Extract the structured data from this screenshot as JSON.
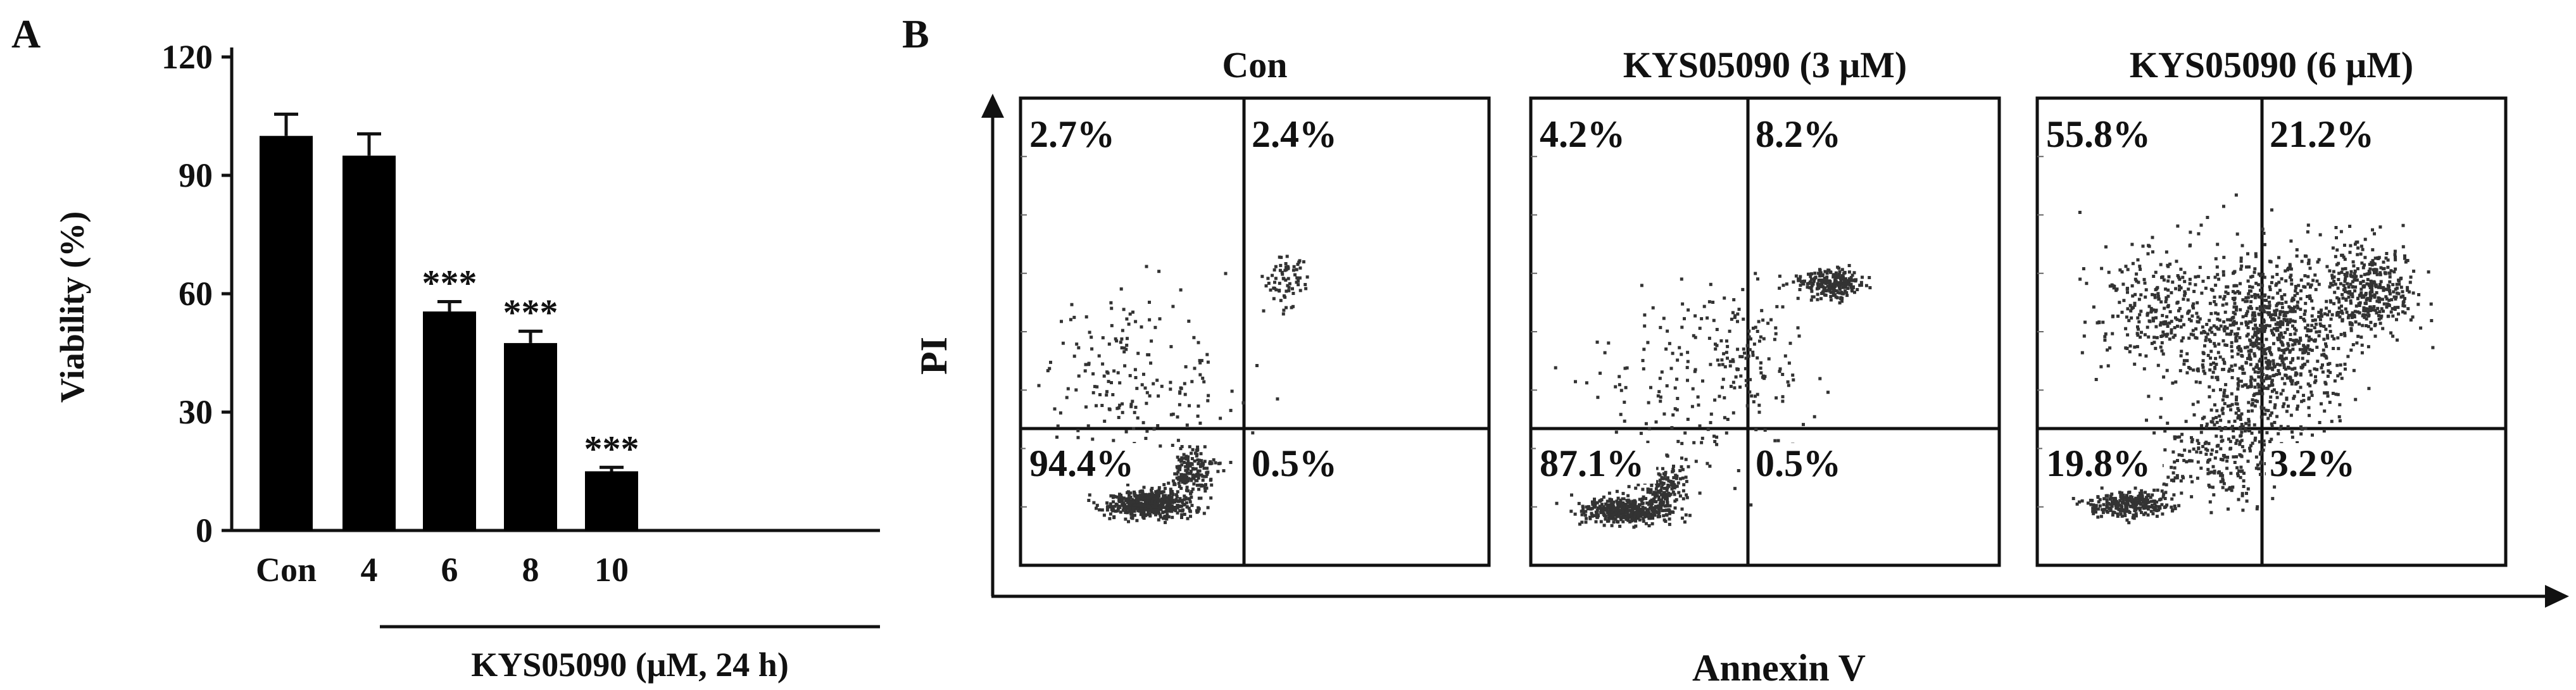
{
  "panels": {
    "a": {
      "letter": "A"
    },
    "b": {
      "letter": "B"
    }
  },
  "chart_data": [
    {
      "type": "bar",
      "panel": "A",
      "categories": [
        "Con",
        "4",
        "6",
        "8",
        "10"
      ],
      "values": [
        100,
        95,
        55.5,
        47.5,
        15
      ],
      "errors": [
        5.5,
        5.5,
        2.5,
        3,
        1
      ],
      "significance": [
        "",
        "",
        "***",
        "***",
        "***"
      ],
      "ylabel": "Viability (%)",
      "xlabel": "KYS05090 (μM, 24 h)",
      "ylim": [
        0,
        120
      ],
      "yticks": [
        0,
        30,
        60,
        90,
        120
      ],
      "bar_color": "#000000",
      "grid": false
    },
    {
      "type": "scatter",
      "panel": "B",
      "xlabel": "Annexin V",
      "ylabel": "PI",
      "plots": [
        {
          "title": "Con",
          "quadrants": [
            "2.7%",
            "2.4%",
            "94.4%",
            "0.5%"
          ]
        },
        {
          "title": "KYS05090 (3 μM)",
          "quadrants": [
            "4.2%",
            "8.2%",
            "87.1%",
            "0.5%"
          ]
        },
        {
          "title": "KYS05090 (6 μM)",
          "quadrants": [
            "55.8%",
            "21.2%",
            "19.8%",
            "3.2%"
          ]
        }
      ]
    }
  ]
}
